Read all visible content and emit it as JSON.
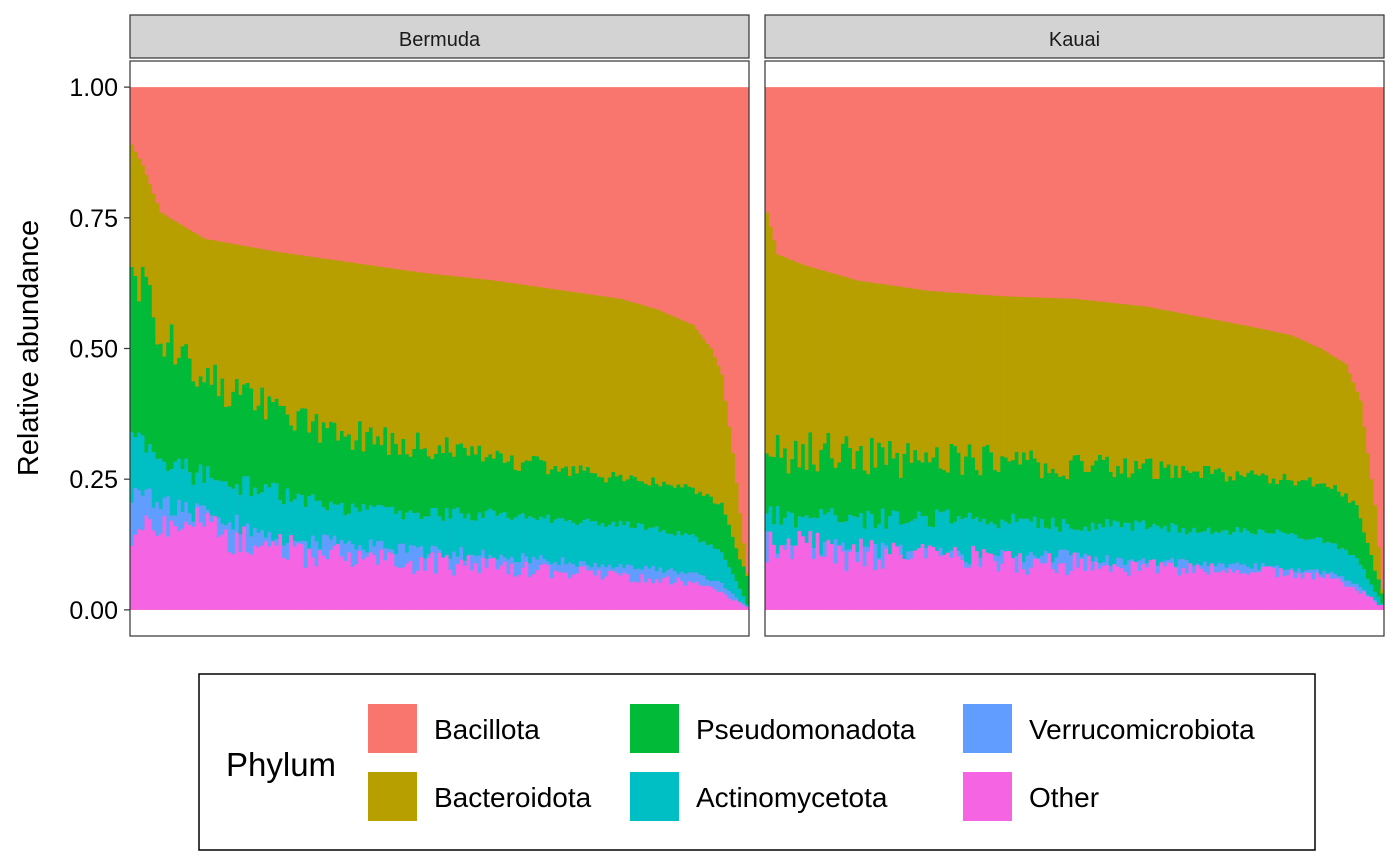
{
  "chart_data": {
    "type": "bar",
    "stacked": true,
    "ylabel": "Relative abundance",
    "ylim": [
      -0.05,
      1.05
    ],
    "yticks": [
      "0.00",
      "0.25",
      "0.50",
      "0.75",
      "1.00"
    ],
    "grid": false,
    "legend": {
      "title": "Phylum",
      "position": "bottom",
      "layout": "3 columns x 2 rows",
      "entries": [
        {
          "name": "Bacillota",
          "color": "#F8766D"
        },
        {
          "name": "Bacteroidota",
          "color": "#B79F00"
        },
        {
          "name": "Pseudomonadota",
          "color": "#00BA38"
        },
        {
          "name": "Actinomycetota",
          "color": "#00BFC4"
        },
        {
          "name": "Verrucomicrobiota",
          "color": "#619CFF"
        },
        {
          "name": "Other",
          "color": "#F564E3"
        }
      ]
    },
    "stack_order_bottom_to_top": [
      "Other",
      "Verrucomicrobiota",
      "Actinomycetota",
      "Pseudomonadota",
      "Bacteroidota",
      "Bacillota"
    ],
    "panels": [
      {
        "name": "Bermuda",
        "samples_note": "about 170 samples, sorted by decreasing non-Bacillota fraction",
        "profiles": {
          "top_of_bacteroidota": [
            [
              0,
              0.89
            ],
            [
              3,
              0.85
            ],
            [
              8,
              0.76
            ],
            [
              20,
              0.71
            ],
            [
              40,
              0.685
            ],
            [
              60,
              0.665
            ],
            [
              80,
              0.645
            ],
            [
              100,
              0.63
            ],
            [
              120,
              0.61
            ],
            [
              135,
              0.595
            ],
            [
              145,
              0.575
            ],
            [
              155,
              0.545
            ],
            [
              160,
              0.5
            ],
            [
              163,
              0.45
            ],
            [
              166,
              0.3
            ],
            [
              170,
              0.07
            ]
          ],
          "top_of_pseudomonadota": [
            [
              0,
              0.66
            ],
            [
              8,
              0.52
            ],
            [
              20,
              0.44
            ],
            [
              40,
              0.37
            ],
            [
              60,
              0.33
            ],
            [
              80,
              0.31
            ],
            [
              100,
              0.29
            ],
            [
              120,
              0.26
            ],
            [
              140,
              0.25
            ],
            [
              155,
              0.23
            ],
            [
              163,
              0.2
            ],
            [
              170,
              0.06
            ]
          ],
          "top_of_actinomycetota": [
            [
              0,
              0.32
            ],
            [
              8,
              0.28
            ],
            [
              20,
              0.25
            ],
            [
              40,
              0.22
            ],
            [
              60,
              0.19
            ],
            [
              80,
              0.18
            ],
            [
              100,
              0.18
            ],
            [
              120,
              0.17
            ],
            [
              140,
              0.16
            ],
            [
              155,
              0.14
            ],
            [
              163,
              0.11
            ],
            [
              170,
              0.01
            ]
          ],
          "top_of_verrucomicrobiota": [
            [
              0,
              0.22
            ],
            [
              10,
              0.2
            ],
            [
              20,
              0.18
            ],
            [
              40,
              0.14
            ],
            [
              60,
              0.12
            ],
            [
              80,
              0.11
            ],
            [
              100,
              0.1
            ],
            [
              120,
              0.09
            ],
            [
              140,
              0.08
            ],
            [
              155,
              0.07
            ],
            [
              163,
              0.05
            ],
            [
              170,
              0.005
            ]
          ],
          "top_of_other": [
            [
              0,
              0.14
            ],
            [
              10,
              0.17
            ],
            [
              20,
              0.15
            ],
            [
              40,
              0.11
            ],
            [
              60,
              0.09
            ],
            [
              80,
              0.085
            ],
            [
              100,
              0.08
            ],
            [
              120,
              0.07
            ],
            [
              140,
              0.06
            ],
            [
              155,
              0.05
            ],
            [
              163,
              0.03
            ],
            [
              170,
              0.005
            ]
          ]
        }
      },
      {
        "name": "Kauai",
        "samples_note": "about 170 samples, sorted by decreasing non-Bacillota fraction",
        "profiles": {
          "top_of_bacteroidota": [
            [
              0,
              0.76
            ],
            [
              3,
              0.68
            ],
            [
              10,
              0.66
            ],
            [
              25,
              0.63
            ],
            [
              45,
              0.61
            ],
            [
              65,
              0.6
            ],
            [
              85,
              0.595
            ],
            [
              105,
              0.58
            ],
            [
              120,
              0.56
            ],
            [
              135,
              0.54
            ],
            [
              145,
              0.525
            ],
            [
              153,
              0.5
            ],
            [
              160,
              0.47
            ],
            [
              164,
              0.4
            ],
            [
              168,
              0.2
            ],
            [
              170,
              0.04
            ]
          ],
          "top_of_pseudomonadota": [
            [
              0,
              0.29
            ],
            [
              20,
              0.29
            ],
            [
              40,
              0.28
            ],
            [
              60,
              0.28
            ],
            [
              80,
              0.27
            ],
            [
              100,
              0.27
            ],
            [
              120,
              0.26
            ],
            [
              140,
              0.25
            ],
            [
              155,
              0.24
            ],
            [
              163,
              0.2
            ],
            [
              170,
              0.03
            ]
          ],
          "top_of_actinomycetota": [
            [
              0,
              0.18
            ],
            [
              20,
              0.17
            ],
            [
              40,
              0.17
            ],
            [
              60,
              0.17
            ],
            [
              80,
              0.16
            ],
            [
              100,
              0.16
            ],
            [
              120,
              0.15
            ],
            [
              140,
              0.15
            ],
            [
              155,
              0.13
            ],
            [
              163,
              0.1
            ],
            [
              170,
              0.01
            ]
          ],
          "top_of_verrucomicrobiota": [
            [
              0,
              0.12
            ],
            [
              20,
              0.11
            ],
            [
              40,
              0.1
            ],
            [
              60,
              0.1
            ],
            [
              80,
              0.1
            ],
            [
              100,
              0.09
            ],
            [
              120,
              0.09
            ],
            [
              140,
              0.08
            ],
            [
              155,
              0.07
            ],
            [
              163,
              0.05
            ],
            [
              170,
              0.005
            ]
          ],
          "top_of_other": [
            [
              0,
              0.12
            ],
            [
              20,
              0.1
            ],
            [
              40,
              0.09
            ],
            [
              60,
              0.09
            ],
            [
              80,
              0.085
            ],
            [
              100,
              0.08
            ],
            [
              120,
              0.075
            ],
            [
              140,
              0.07
            ],
            [
              155,
              0.06
            ],
            [
              163,
              0.04
            ],
            [
              170,
              0.005
            ]
          ]
        }
      }
    ]
  }
}
